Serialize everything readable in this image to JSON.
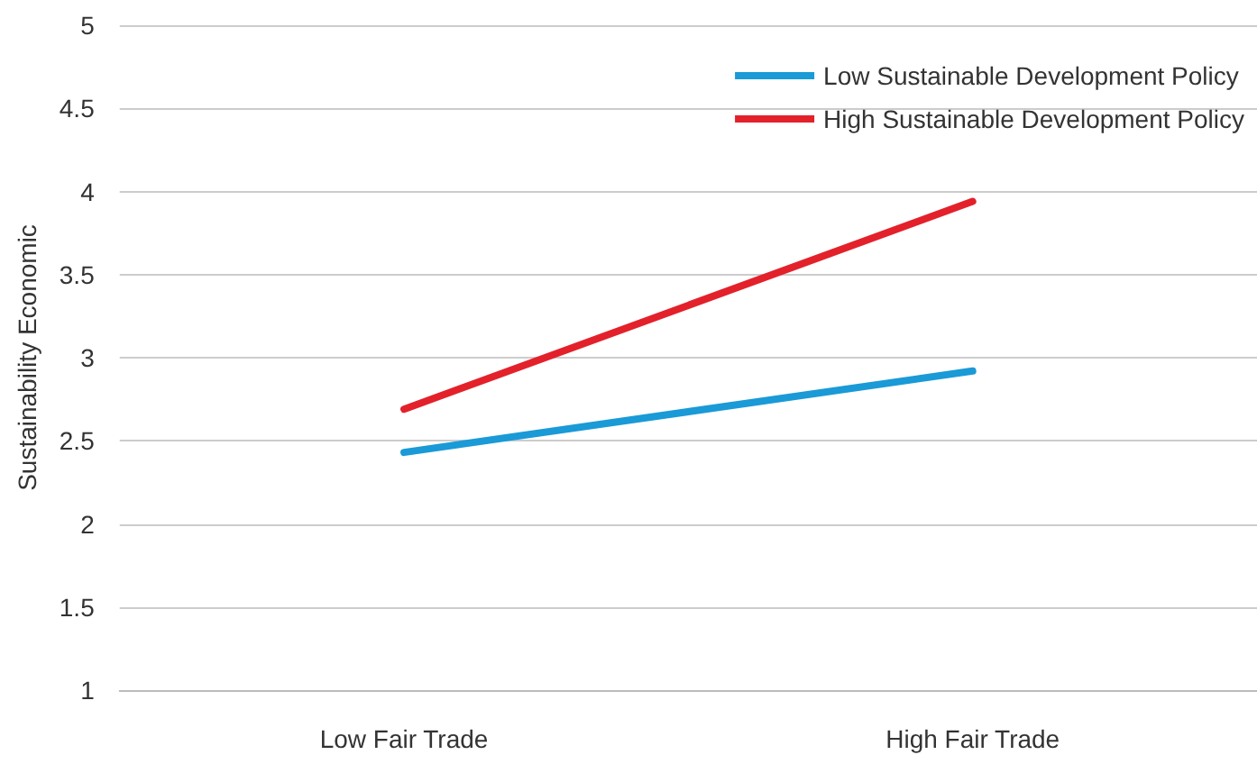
{
  "chart_data": {
    "type": "line",
    "ylabel": "Sustainability Economic",
    "categories": [
      "Low Fair Trade",
      "High Fair Trade"
    ],
    "series": [
      {
        "name": "Low Sustainable Development Policy",
        "color": "#1a9ad6",
        "values": [
          2.43,
          2.92
        ]
      },
      {
        "name": "High Sustainable Development Policy",
        "color": "#e3212b",
        "values": [
          2.69,
          3.94
        ]
      }
    ],
    "ylim": [
      1,
      5
    ],
    "yticks": [
      1,
      1.5,
      2,
      2.5,
      3,
      3.5,
      4,
      4.5,
      5
    ],
    "grid": "y",
    "legend": "top right",
    "marker": "none",
    "line_style": "solid"
  }
}
